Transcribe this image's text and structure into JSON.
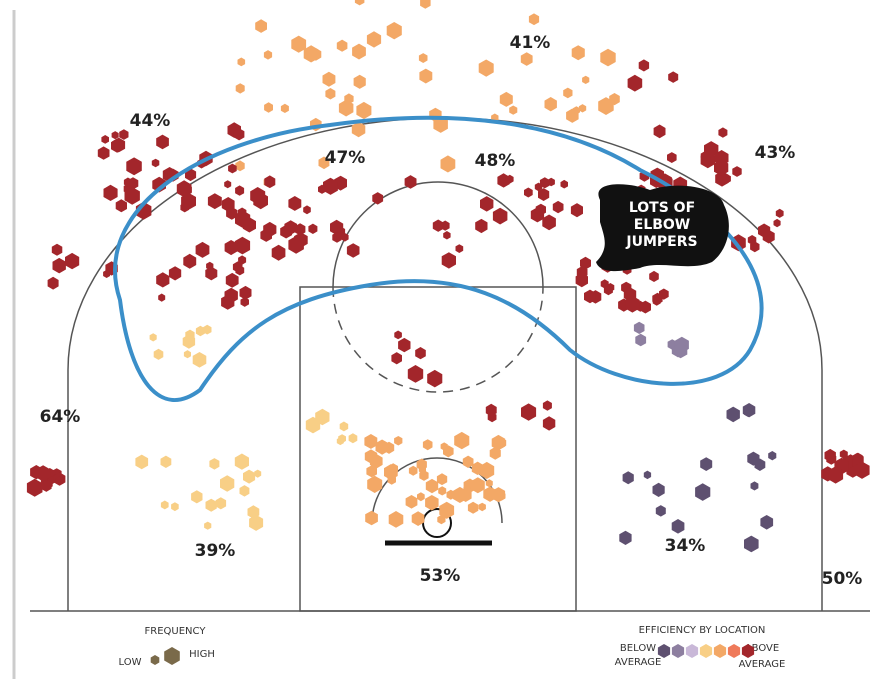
{
  "zones": [
    {
      "label": "41%"
    },
    {
      "label": "44%"
    },
    {
      "label": "47%"
    },
    {
      "label": "48%"
    },
    {
      "label": "43%"
    },
    {
      "label": "64%"
    },
    {
      "label": "39%"
    },
    {
      "label": "53%"
    },
    {
      "label": "34%"
    },
    {
      "label": "50%"
    }
  ],
  "callout": [
    "LOTS OF",
    "ELBOW",
    "JUMPERS"
  ],
  "legend": {
    "frequency": {
      "title": "FREQUENCY",
      "low": "LOW",
      "high": "HIGH"
    },
    "efficiency": {
      "title": "EFFICIENCY BY LOCATION",
      "below": [
        "BELOW",
        "AVERAGE"
      ],
      "above": [
        "ABOVE",
        "AVERAGE"
      ]
    }
  }
}
